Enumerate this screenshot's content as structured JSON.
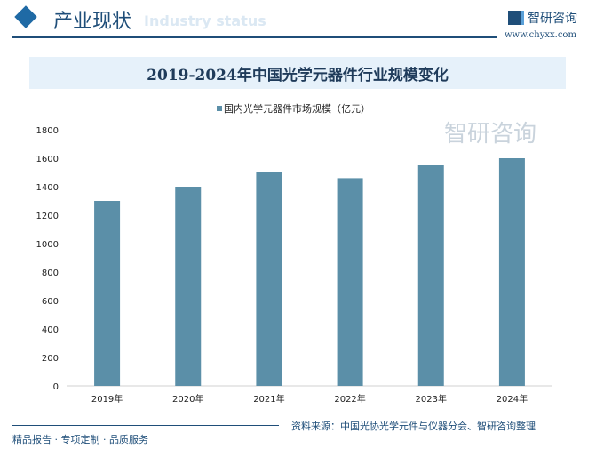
{
  "header": {
    "title": "产业现状",
    "subtitle": "Industry status",
    "brand": "智研咨询",
    "url": "www.chyxx.com"
  },
  "footer": {
    "tagline": "精品报告 · 专项定制 · 品质服务",
    "source": "资料来源：中国光协光学元件与仪器分会、智研咨询整理",
    "watermark": "智研咨询"
  },
  "chart_data": {
    "type": "bar",
    "title": "2019-2024年中国光学元器件行业规模变化",
    "categories": [
      "2019年",
      "2020年",
      "2021年",
      "2022年",
      "2023年",
      "2024年"
    ],
    "series": [
      {
        "name": "国内光学元器件市场规模（亿元）",
        "values": [
          1300,
          1400,
          1500,
          1460,
          1550,
          1600
        ],
        "color": "#5b8fa8"
      }
    ],
    "ylim": [
      0,
      1800
    ],
    "yticks": [
      "0",
      "200",
      "400",
      "600",
      "800",
      "1000",
      "1200",
      "1400",
      "1600",
      "1800"
    ],
    "grid": false,
    "legend": "top"
  }
}
